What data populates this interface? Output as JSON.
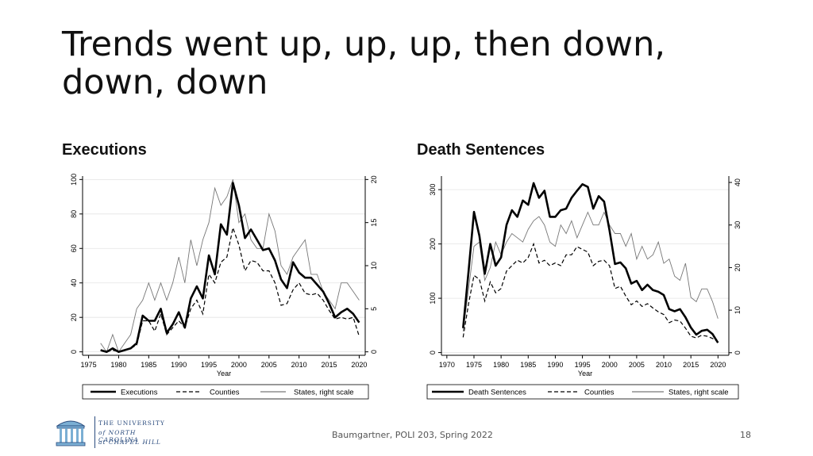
{
  "slide": {
    "title": "Trends went up, up, up, then down, down, down",
    "left_heading": "Executions",
    "right_heading": "Death Sentences",
    "footer_center": "Baumgartner, POLI 203, Spring 2022",
    "page_number": "18",
    "logo": {
      "line1": "THE UNIVERSITY",
      "line2": "of NORTH CAROLINA",
      "line3": "at CHAPEL HILL",
      "color": "#2b4c7e"
    }
  },
  "chart_data": [
    {
      "type": "line",
      "title": "Executions",
      "xlabel": "Year",
      "xlim": [
        1974,
        2021
      ],
      "xticks": [
        1975,
        1980,
        1985,
        1990,
        1995,
        2000,
        2005,
        2010,
        2015,
        2020
      ],
      "ylim_left": [
        -2,
        102
      ],
      "yticks_left": [
        0,
        20,
        40,
        60,
        80,
        100
      ],
      "ylim_right": [
        -0.4,
        20.4
      ],
      "yticks_right": [
        0,
        5,
        10,
        15,
        20
      ],
      "grid": true,
      "legend_position": "bottom",
      "series": [
        {
          "name": "Executions",
          "axis": "left",
          "style": "thick",
          "x": [
            1977,
            1978,
            1979,
            1980,
            1981,
            1982,
            1983,
            1984,
            1985,
            1986,
            1987,
            1988,
            1989,
            1990,
            1991,
            1992,
            1993,
            1994,
            1995,
            1996,
            1997,
            1998,
            1999,
            2000,
            2001,
            2002,
            2003,
            2004,
            2005,
            2006,
            2007,
            2008,
            2009,
            2010,
            2011,
            2012,
            2013,
            2014,
            2015,
            2016,
            2017,
            2018,
            2019,
            2020
          ],
          "values": [
            1,
            0,
            2,
            0,
            1,
            2,
            5,
            21,
            18,
            18,
            25,
            11,
            16,
            23,
            14,
            31,
            38,
            31,
            56,
            45,
            74,
            68,
            98,
            85,
            66,
            71,
            65,
            59,
            60,
            53,
            42,
            37,
            52,
            46,
            43,
            43,
            39,
            35,
            28,
            20,
            23,
            25,
            22,
            17
          ]
        },
        {
          "name": "Counties",
          "axis": "left",
          "style": "dashed",
          "x": [
            1977,
            1978,
            1979,
            1980,
            1981,
            1982,
            1983,
            1984,
            1985,
            1986,
            1987,
            1988,
            1989,
            1990,
            1991,
            1992,
            1993,
            1994,
            1995,
            1996,
            1997,
            1998,
            1999,
            2000,
            2001,
            2002,
            2003,
            2004,
            2005,
            2006,
            2007,
            2008,
            2009,
            2010,
            2011,
            2012,
            2013,
            2014,
            2015,
            2016,
            2017,
            2018,
            2019,
            2020
          ],
          "values": [
            1,
            0,
            1,
            0,
            1,
            2,
            4,
            18,
            18,
            12,
            22,
            10,
            14,
            18,
            14,
            25,
            30,
            22,
            45,
            40,
            52,
            55,
            72,
            62,
            47,
            53,
            52,
            47,
            47,
            40,
            27,
            28,
            36,
            40,
            34,
            33,
            34,
            30,
            24,
            19,
            20,
            19,
            20,
            9
          ]
        },
        {
          "name": "States, right scale",
          "axis": "right",
          "style": "thin",
          "x": [
            1977,
            1978,
            1979,
            1980,
            1981,
            1982,
            1983,
            1984,
            1985,
            1986,
            1987,
            1988,
            1989,
            1990,
            1991,
            1992,
            1993,
            1994,
            1995,
            1996,
            1997,
            1998,
            1999,
            2000,
            2001,
            2002,
            2003,
            2004,
            2005,
            2006,
            2007,
            2008,
            2009,
            2010,
            2011,
            2012,
            2013,
            2014,
            2015,
            2016,
            2017,
            2018,
            2019,
            2020
          ],
          "values": [
            1,
            0,
            2,
            0,
            1,
            2,
            5,
            6,
            8,
            6,
            8,
            6,
            8,
            11,
            8,
            13,
            10,
            13,
            15,
            19,
            17,
            18,
            20,
            15,
            16,
            13,
            12,
            12,
            16,
            14,
            10,
            9,
            11,
            12,
            13,
            9,
            9,
            7,
            6,
            5,
            8,
            8,
            7,
            6
          ]
        }
      ]
    },
    {
      "type": "line",
      "title": "Death Sentences",
      "xlabel": "Year",
      "xlim": [
        1969,
        2022
      ],
      "xticks": [
        1970,
        1975,
        1980,
        1985,
        1990,
        1995,
        2000,
        2005,
        2010,
        2015,
        2020
      ],
      "ylim_left": [
        -5,
        325
      ],
      "yticks_left": [
        0,
        100,
        200,
        300
      ],
      "ylim_right": [
        -0.6,
        41.5
      ],
      "yticks_right": [
        0,
        10,
        20,
        30,
        40
      ],
      "grid": true,
      "legend_position": "bottom",
      "series": [
        {
          "name": "Death Sentences",
          "axis": "left",
          "style": "thick",
          "x": [
            1973,
            1974,
            1975,
            1976,
            1977,
            1978,
            1979,
            1980,
            1981,
            1982,
            1983,
            1984,
            1985,
            1986,
            1987,
            1988,
            1989,
            1990,
            1991,
            1992,
            1993,
            1994,
            1995,
            1996,
            1997,
            1998,
            1999,
            2000,
            2001,
            2002,
            2003,
            2004,
            2005,
            2006,
            2007,
            2008,
            2009,
            2010,
            2011,
            2012,
            2013,
            2014,
            2015,
            2016,
            2017,
            2018,
            2019,
            2020
          ],
          "values": [
            45,
            150,
            259,
            215,
            145,
            200,
            160,
            175,
            235,
            262,
            250,
            280,
            272,
            312,
            285,
            298,
            250,
            250,
            262,
            265,
            285,
            298,
            310,
            305,
            265,
            288,
            278,
            225,
            163,
            166,
            155,
            127,
            132,
            115,
            125,
            115,
            112,
            106,
            80,
            76,
            80,
            65,
            46,
            33,
            40,
            42,
            34,
            18
          ]
        },
        {
          "name": "Counties",
          "axis": "left",
          "style": "dashed",
          "x": [
            1973,
            1974,
            1975,
            1976,
            1977,
            1978,
            1979,
            1980,
            1981,
            1982,
            1983,
            1984,
            1985,
            1986,
            1987,
            1988,
            1989,
            1990,
            1991,
            1992,
            1993,
            1994,
            1995,
            1996,
            1997,
            1998,
            1999,
            2000,
            2001,
            2002,
            2003,
            2004,
            2005,
            2006,
            2007,
            2008,
            2009,
            2010,
            2011,
            2012,
            2013,
            2014,
            2015,
            2016,
            2017,
            2018,
            2019,
            2020
          ],
          "values": [
            28,
            90,
            142,
            135,
            95,
            130,
            110,
            118,
            150,
            160,
            170,
            165,
            175,
            200,
            165,
            170,
            160,
            165,
            160,
            180,
            180,
            195,
            190,
            185,
            160,
            168,
            170,
            160,
            118,
            122,
            104,
            88,
            95,
            85,
            90,
            82,
            75,
            70,
            55,
            60,
            58,
            45,
            30,
            27,
            32,
            30,
            26,
            20
          ]
        },
        {
          "name": "States, right scale",
          "axis": "right",
          "style": "thin",
          "x": [
            1973,
            1974,
            1975,
            1976,
            1977,
            1978,
            1979,
            1980,
            1981,
            1982,
            1983,
            1984,
            1985,
            1986,
            1987,
            1988,
            1989,
            1990,
            1991,
            1992,
            1993,
            1994,
            1995,
            1996,
            1997,
            1998,
            1999,
            2000,
            2001,
            2002,
            2003,
            2004,
            2005,
            2006,
            2007,
            2008,
            2009,
            2010,
            2011,
            2012,
            2013,
            2014,
            2015,
            2016,
            2017,
            2018,
            2019,
            2020
          ],
          "values": [
            5,
            15,
            25,
            26,
            17,
            20,
            26,
            23,
            26,
            28,
            27,
            26,
            29,
            31,
            32,
            30,
            26,
            25,
            30,
            28,
            31,
            27,
            30,
            33,
            30,
            30,
            33,
            30,
            28,
            28,
            25,
            28,
            22,
            25,
            22,
            23,
            26,
            21,
            22,
            18,
            17,
            21,
            13,
            12,
            15,
            15,
            12,
            8
          ]
        }
      ]
    }
  ]
}
